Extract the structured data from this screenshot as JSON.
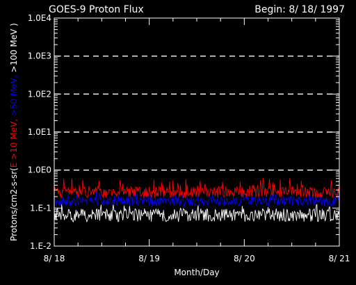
{
  "chart_data": {
    "type": "line",
    "title": "GOES-9 Proton Flux",
    "begin_label": "Begin: 8/ 18/ 1997",
    "xlabel": "Month/Day",
    "ylabel": {
      "prefix": "Protons/cm2-s-sr(",
      "parts": [
        {
          "text": "E >10 MeV, ",
          "color": "#ff0000"
        },
        {
          "text": ">50 MeV, ",
          "color": "#0000ff"
        },
        {
          "text": ">100 MeV",
          "color": "#ffffff"
        }
      ],
      "suffix": " )"
    },
    "x_ticks": [
      "8/ 18",
      "8/ 19",
      "8/ 20",
      "8/ 21"
    ],
    "x_range_days": [
      0,
      3
    ],
    "y_scale": "log",
    "y_range": [
      0.01,
      10000
    ],
    "y_ticks": [
      "1.0E4",
      "1.0E3",
      "1.0E2",
      "1.0E1",
      "1.0E0",
      "1.E-1",
      "1.E-2"
    ],
    "grid": "dashed horizontal at decades 1E0 through 1E3",
    "series": [
      {
        "name": "E >10 MeV",
        "color": "#ff0000",
        "base": 0.26,
        "low": 0.18,
        "high": 0.62
      },
      {
        "name": ">50 MeV",
        "color": "#0000ff",
        "base": 0.15,
        "low": 0.1,
        "high": 0.28
      },
      {
        "name": ">100 MeV",
        "color": "#ffffff",
        "base": 0.065,
        "low": 0.03,
        "high": 0.13
      }
    ]
  }
}
